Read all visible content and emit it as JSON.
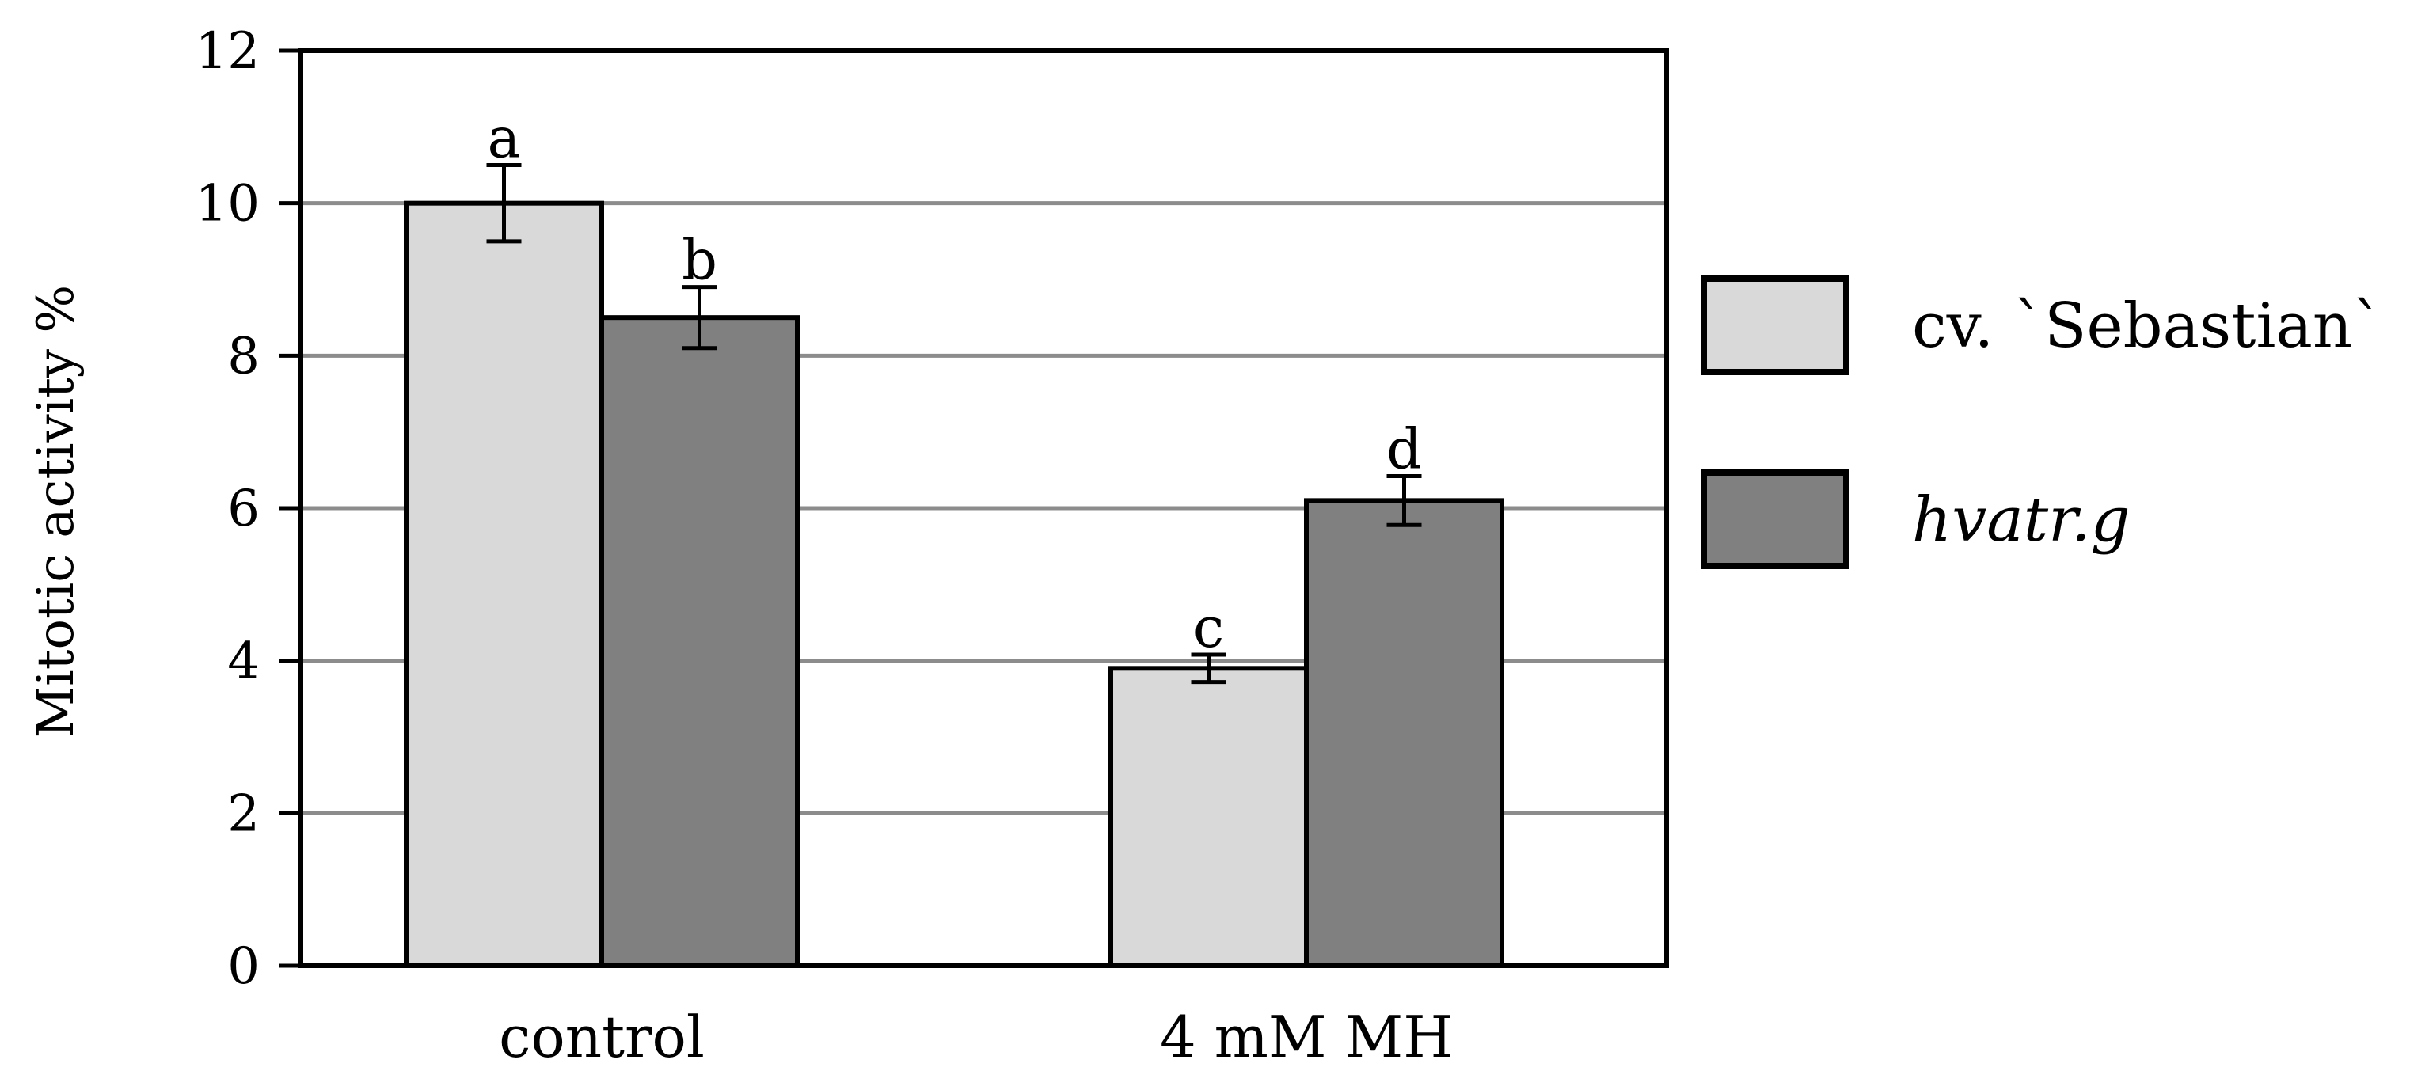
{
  "chart_data": {
    "type": "bar",
    "categories": [
      "control",
      "4 mM MH"
    ],
    "series": [
      {
        "name": "cv. `Sebastian`",
        "values": [
          10.0,
          3.9
        ],
        "errors": [
          0.5,
          0.18
        ],
        "significance": [
          "a",
          "c"
        ],
        "color": "#d9d9d9",
        "italic": false
      },
      {
        "name": "hvatr.g",
        "values": [
          8.5,
          6.1
        ],
        "errors": [
          0.4,
          0.32
        ],
        "significance": [
          "b",
          "d"
        ],
        "color": "#808080",
        "italic": true
      }
    ],
    "title": "",
    "xlabel": "",
    "ylabel": "Mitotic activity %",
    "ylim": [
      0,
      12
    ],
    "yticks": [
      0,
      2,
      4,
      6,
      8,
      10,
      12
    ],
    "grid": true,
    "legend_position": "right"
  }
}
